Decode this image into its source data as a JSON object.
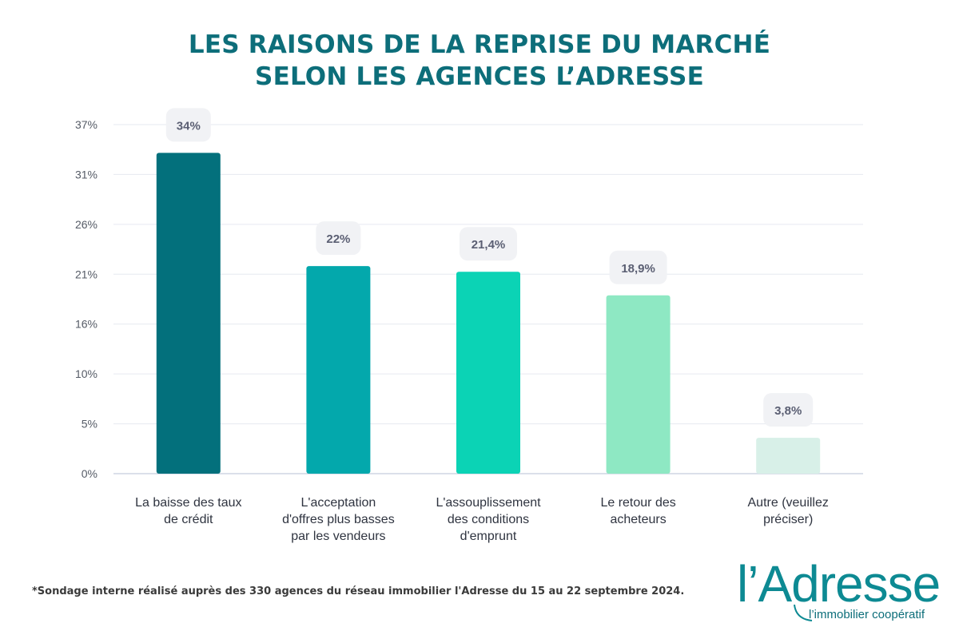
{
  "title_line1": "LES RAISONS DE LA REPRISE DU MARCHÉ",
  "title_line2": "SELON LES AGENCES L’ADRESSE",
  "chart_data": {
    "type": "bar",
    "yticks": [
      "0%",
      "5%",
      "10%",
      "16%",
      "21%",
      "26%",
      "31%",
      "37%"
    ],
    "ylim": [
      0,
      37
    ],
    "grid": true,
    "categories": [
      [
        "La baisse des taux",
        "de crédit"
      ],
      [
        "L'acceptation",
        "d'offres plus basses",
        "par les vendeurs"
      ],
      [
        "L'assouplissement",
        "des conditions",
        "d'emprunt"
      ],
      [
        "Le retour des",
        "acheteurs"
      ],
      [
        "Autre (veuillez",
        "préciser)"
      ]
    ],
    "values": [
      34,
      22,
      21.4,
      18.9,
      3.8
    ],
    "value_labels": [
      "34%",
      "22%",
      "21,4%",
      "18,9%",
      "3,8%"
    ],
    "colors": [
      "#03707c",
      "#03a8ac",
      "#0bd3b5",
      "#8ee8c3",
      "#d8f0e8"
    ]
  },
  "footnote": "*Sondage interne réalisé auprès des 330 agences du réseau immobilier l'Adresse du 15 au 22 septembre 2024.",
  "logo": {
    "name": "l’Adresse",
    "tagline": "l’immobilier coopératif"
  }
}
